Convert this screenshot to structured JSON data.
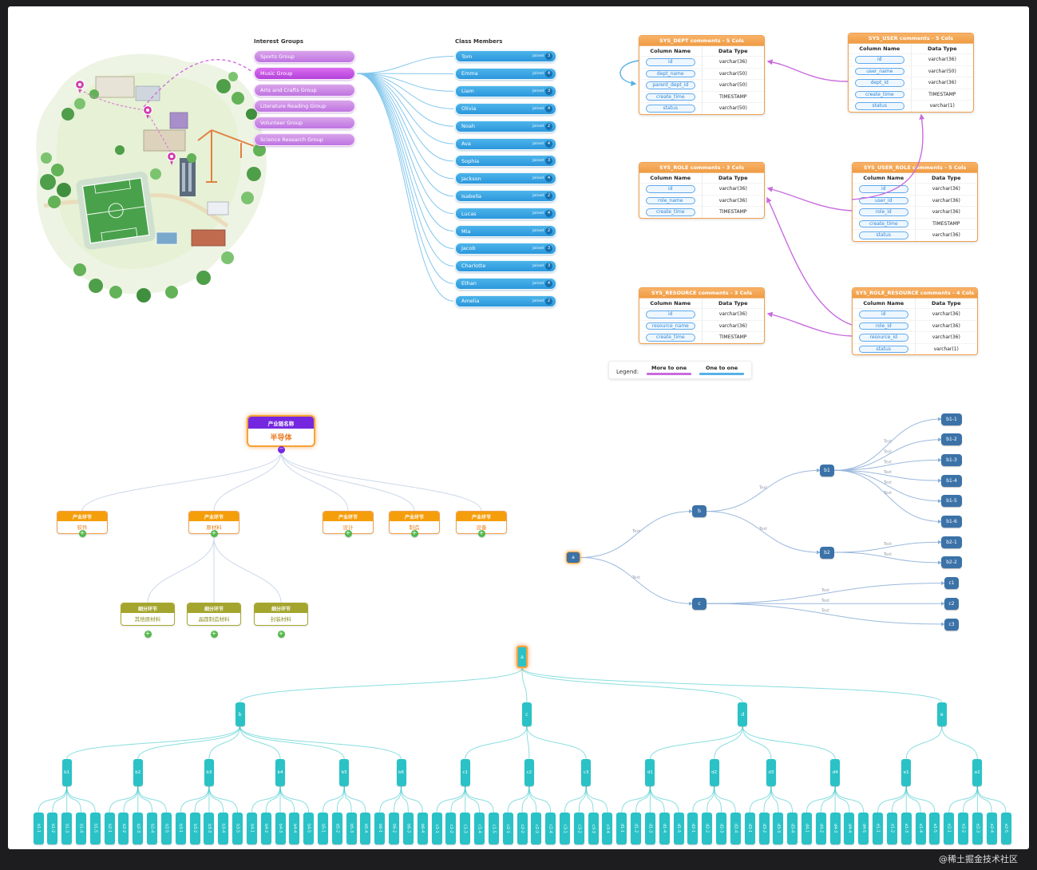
{
  "page": {
    "watermark": "@稀土掘金技术社区"
  },
  "groups_panel": {
    "title": "Interest Groups",
    "items": [
      {
        "label": "Sports Group",
        "highlight": false
      },
      {
        "label": "Music Group",
        "highlight": true
      },
      {
        "label": "Arts and Crafts Group",
        "highlight": false
      },
      {
        "label": "Literature Reading Group",
        "highlight": false
      },
      {
        "label": "Volunteer Group",
        "highlight": false
      },
      {
        "label": "Science Research Group",
        "highlight": false
      }
    ]
  },
  "members_panel": {
    "title": "Class Members",
    "joined_label": "Joined",
    "items": [
      {
        "name": "Tom",
        "count": 3
      },
      {
        "name": "Emma",
        "count": 4
      },
      {
        "name": "Liam",
        "count": 3
      },
      {
        "name": "Olivia",
        "count": 4
      },
      {
        "name": "Noah",
        "count": 2
      },
      {
        "name": "Ava",
        "count": 4
      },
      {
        "name": "Sophia",
        "count": 3
      },
      {
        "name": "Jackson",
        "count": 4
      },
      {
        "name": "Isabella",
        "count": 2
      },
      {
        "name": "Lucas",
        "count": 4
      },
      {
        "name": "Mia",
        "count": 2
      },
      {
        "name": "Jacob",
        "count": 3
      },
      {
        "name": "Charlotte",
        "count": 3
      },
      {
        "name": "Ethan",
        "count": 4
      },
      {
        "name": "Amelia",
        "count": 2
      }
    ]
  },
  "er_diagram": {
    "column_headers": [
      "Column Name",
      "Data Type"
    ],
    "tables": [
      {
        "id": "sys_dept",
        "title": "SYS_DEPT comments - 5 Cols",
        "rows": [
          [
            "id",
            "varchar(36)"
          ],
          [
            "dept_name",
            "varchar(50)"
          ],
          [
            "parent_dept_id",
            "varchar(50)"
          ],
          [
            "create_time",
            "TIMESTAMP"
          ],
          [
            "status",
            "varchar(50)"
          ]
        ]
      },
      {
        "id": "sys_user",
        "title": "SYS_USER comments - 5 Cols",
        "rows": [
          [
            "id",
            "varchar(36)"
          ],
          [
            "user_name",
            "varchar(50)"
          ],
          [
            "dept_id",
            "varchar(36)"
          ],
          [
            "create_time",
            "TIMESTAMP"
          ],
          [
            "status",
            "varchar(1)"
          ]
        ]
      },
      {
        "id": "sys_role",
        "title": "SYS_ROLE comments - 3 Cols",
        "rows": [
          [
            "id",
            "varchar(36)"
          ],
          [
            "role_name",
            "varchar(36)"
          ],
          [
            "create_time",
            "TIMESTAMP"
          ]
        ]
      },
      {
        "id": "sys_user_role",
        "title": "SYS_USER_ROLE comments - 5 Cols",
        "rows": [
          [
            "id",
            "varchar(36)"
          ],
          [
            "user_id",
            "varchar(36)"
          ],
          [
            "role_id",
            "varchar(36)"
          ],
          [
            "create_time",
            "TIMESTAMP"
          ],
          [
            "status",
            "varchar(36)"
          ]
        ]
      },
      {
        "id": "sys_resource",
        "title": "SYS_RESOURCE comments - 3 Cols",
        "rows": [
          [
            "id",
            "varchar(36)"
          ],
          [
            "resource_name",
            "varchar(36)"
          ],
          [
            "create_time",
            "TIMESTAMP"
          ]
        ]
      },
      {
        "id": "sys_role_resource",
        "title": "SYS_ROLE_RESOURCE comments - 4 Cols",
        "rows": [
          [
            "id",
            "varchar(36)"
          ],
          [
            "role_id",
            "varchar(36)"
          ],
          [
            "resource_id",
            "varchar(36)"
          ],
          [
            "status",
            "varchar(1)"
          ]
        ]
      }
    ],
    "legend": {
      "label": "Legend:",
      "items": [
        {
          "label": "More to one",
          "color": "#c86bdd"
        },
        {
          "label": "One to one",
          "color": "#57b1e6"
        }
      ]
    }
  },
  "mindmap": {
    "root": {
      "header": "产业链名称",
      "body": "半导体"
    },
    "branch_header": "产业环节",
    "branches": [
      {
        "label": "软件"
      },
      {
        "label": "原材料",
        "children_header": "细分环节",
        "children": [
          {
            "label": "其他原材料"
          },
          {
            "label": "晶圆制造材料"
          },
          {
            "label": "封装材料"
          }
        ]
      },
      {
        "label": "设计"
      },
      {
        "label": "制造"
      },
      {
        "label": "设备"
      }
    ]
  },
  "flow_tree": {
    "edge_label": "Text",
    "root": {
      "label": "a",
      "children": [
        {
          "label": "b",
          "children": [
            {
              "label": "b1",
              "children": [
                {
                  "label": "b1-1"
                },
                {
                  "label": "b1-2"
                },
                {
                  "label": "b1-3"
                },
                {
                  "label": "b1-4"
                },
                {
                  "label": "b1-5"
                },
                {
                  "label": "b1-6"
                }
              ]
            },
            {
              "label": "b2",
              "children": [
                {
                  "label": "b2-1"
                },
                {
                  "label": "b2-2"
                }
              ]
            }
          ]
        },
        {
          "label": "c",
          "children": [
            {
              "label": "c1"
            },
            {
              "label": "c2"
            },
            {
              "label": "c3"
            }
          ]
        }
      ]
    }
  },
  "big_tree": {
    "root": {
      "label": "a",
      "children": [
        {
          "label": "b",
          "children": [
            {
              "label": "b1",
              "leaf_count": 5
            },
            {
              "label": "b2",
              "leaf_count": 5
            },
            {
              "label": "b3",
              "leaf_count": 5
            },
            {
              "label": "b4",
              "leaf_count": 5
            },
            {
              "label": "b5",
              "leaf_count": 4
            },
            {
              "label": "b6",
              "leaf_count": 4
            }
          ]
        },
        {
          "label": "c",
          "children": [
            {
              "label": "c1",
              "leaf_count": 5
            },
            {
              "label": "c2",
              "leaf_count": 4
            },
            {
              "label": "c3",
              "leaf_count": 4
            }
          ]
        },
        {
          "label": "d",
          "children": [
            {
              "label": "d1",
              "leaf_count": 5
            },
            {
              "label": "d2",
              "leaf_count": 4
            },
            {
              "label": "d3",
              "leaf_count": 4
            },
            {
              "label": "d4",
              "leaf_count": 5
            }
          ]
        },
        {
          "label": "e",
          "children": [
            {
              "label": "e1",
              "leaf_count": 5
            },
            {
              "label": "e2",
              "leaf_count": 5
            }
          ]
        }
      ]
    }
  }
}
